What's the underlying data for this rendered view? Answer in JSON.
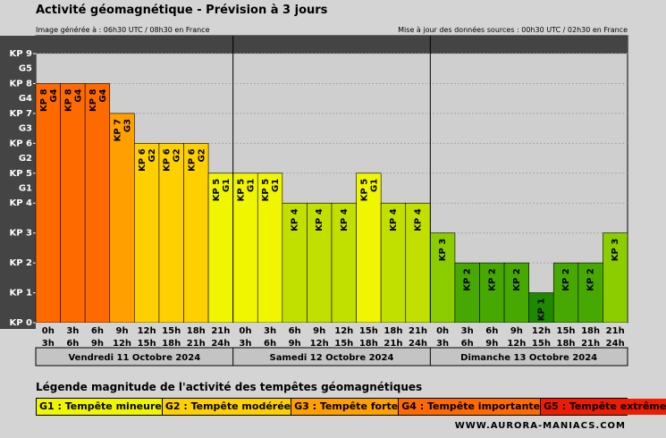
{
  "header": {
    "title": "Activité géomagnétique - Prévision à 3 jours",
    "generated": "Image générée à : 06h30 UTC / 08h30 en France",
    "updated": "Mise à jour des données sources : 00h30 UTC / 02h30 en France"
  },
  "chart_data": {
    "type": "bar",
    "y_ticks": [
      {
        "v": 0,
        "kp": "KP 0",
        "g": ""
      },
      {
        "v": 1,
        "kp": "KP 1",
        "g": ""
      },
      {
        "v": 2,
        "kp": "KP 2",
        "g": ""
      },
      {
        "v": 3,
        "kp": "KP 3",
        "g": ""
      },
      {
        "v": 4,
        "kp": "KP 4",
        "g": ""
      },
      {
        "v": 5,
        "kp": "KP 5",
        "g": "G1"
      },
      {
        "v": 6,
        "kp": "KP 6",
        "g": "G2"
      },
      {
        "v": 7,
        "kp": "KP 7",
        "g": "G3"
      },
      {
        "v": 8,
        "kp": "KP 8",
        "g": "G4"
      },
      {
        "v": 9,
        "kp": "KP 9",
        "g": "G5"
      }
    ],
    "ylim": [
      0,
      9
    ],
    "days": [
      {
        "label": "Vendredi 11 Octobre 2024",
        "bars": [
          {
            "start": "0h",
            "end": "3h",
            "kp": 8,
            "kp_label": "KP 8",
            "g_label": "G4"
          },
          {
            "start": "3h",
            "end": "6h",
            "kp": 8,
            "kp_label": "KP 8",
            "g_label": "G4"
          },
          {
            "start": "6h",
            "end": "9h",
            "kp": 8,
            "kp_label": "KP 8",
            "g_label": "G4"
          },
          {
            "start": "9h",
            "end": "12h",
            "kp": 7,
            "kp_label": "KP 7",
            "g_label": "G3"
          },
          {
            "start": "12h",
            "end": "15h",
            "kp": 6,
            "kp_label": "KP 6",
            "g_label": "G2"
          },
          {
            "start": "15h",
            "end": "18h",
            "kp": 6,
            "kp_label": "KP 6",
            "g_label": "G2"
          },
          {
            "start": "18h",
            "end": "21h",
            "kp": 6,
            "kp_label": "KP 6",
            "g_label": "G2"
          },
          {
            "start": "21h",
            "end": "24h",
            "kp": 5,
            "kp_label": "KP 5",
            "g_label": "G1"
          }
        ]
      },
      {
        "label": "Samedi 12 Octobre 2024",
        "bars": [
          {
            "start": "0h",
            "end": "3h",
            "kp": 5,
            "kp_label": "KP 5",
            "g_label": "G1"
          },
          {
            "start": "3h",
            "end": "6h",
            "kp": 5,
            "kp_label": "KP 5",
            "g_label": "G1"
          },
          {
            "start": "6h",
            "end": "9h",
            "kp": 4,
            "kp_label": "KP 4",
            "g_label": ""
          },
          {
            "start": "9h",
            "end": "12h",
            "kp": 4,
            "kp_label": "KP 4",
            "g_label": ""
          },
          {
            "start": "12h",
            "end": "15h",
            "kp": 4,
            "kp_label": "KP 4",
            "g_label": ""
          },
          {
            "start": "15h",
            "end": "18h",
            "kp": 5,
            "kp_label": "KP 5",
            "g_label": "G1"
          },
          {
            "start": "18h",
            "end": "21h",
            "kp": 4,
            "kp_label": "KP 4",
            "g_label": ""
          },
          {
            "start": "21h",
            "end": "24h",
            "kp": 4,
            "kp_label": "KP 4",
            "g_label": ""
          }
        ]
      },
      {
        "label": "Dimanche 13 Octobre 2024",
        "bars": [
          {
            "start": "0h",
            "end": "3h",
            "kp": 3,
            "kp_label": "KP 3",
            "g_label": ""
          },
          {
            "start": "3h",
            "end": "6h",
            "kp": 2,
            "kp_label": "KP 2",
            "g_label": ""
          },
          {
            "start": "6h",
            "end": "9h",
            "kp": 2,
            "kp_label": "KP 2",
            "g_label": ""
          },
          {
            "start": "9h",
            "end": "12h",
            "kp": 2,
            "kp_label": "KP 2",
            "g_label": ""
          },
          {
            "start": "12h",
            "end": "15h",
            "kp": 1,
            "kp_label": "KP 1",
            "g_label": ""
          },
          {
            "start": "15h",
            "end": "18h",
            "kp": 2,
            "kp_label": "KP 2",
            "g_label": ""
          },
          {
            "start": "18h",
            "end": "21h",
            "kp": 2,
            "kp_label": "KP 2",
            "g_label": ""
          },
          {
            "start": "21h",
            "end": "24h",
            "kp": 3,
            "kp_label": "KP 3",
            "g_label": ""
          }
        ]
      }
    ],
    "colors": {
      "1": "#1f8a00",
      "2": "#46a800",
      "3": "#8ccd00",
      "4": "#c2e000",
      "5": "#f0f500",
      "6": "#ffd000",
      "7": "#ff9f00",
      "8": "#ff6a00",
      "9": "#ee1c00",
      "plot_bg": "#cfcfcf",
      "dark_band": "#444444"
    }
  },
  "legend": {
    "title": "Légende magnitude de l'activité des tempêtes géomagnétiques",
    "items": [
      {
        "label": "G1 : Tempête mineure",
        "color": "#f0f500"
      },
      {
        "label": "G2 : Tempête modérée",
        "color": "#ffd000"
      },
      {
        "label": "G3 : Tempête forte",
        "color": "#ff9f00"
      },
      {
        "label": "G4 : Tempête importante",
        "color": "#ff6a00"
      },
      {
        "label": "G5 : Tempête extrême",
        "color": "#ee1c00"
      }
    ]
  },
  "footer": {
    "website": "WWW.AURORA-MANIACS.COM"
  }
}
